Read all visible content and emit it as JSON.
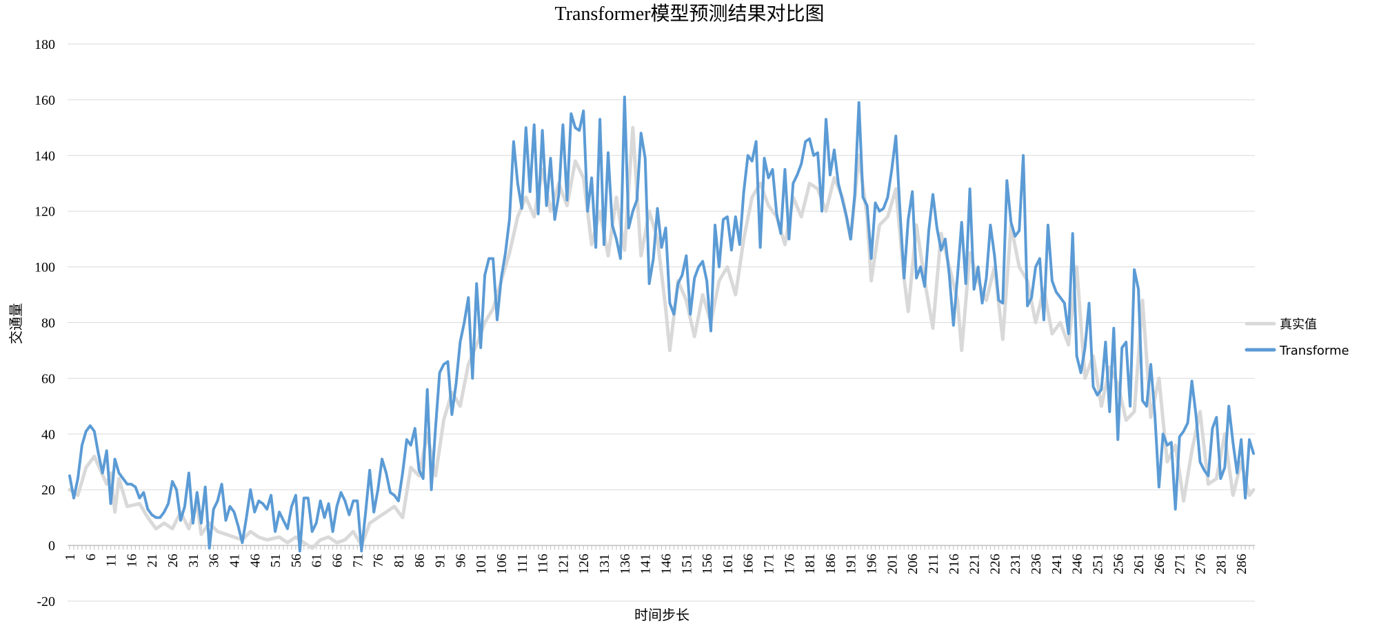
{
  "chart_data": {
    "type": "line",
    "title": "Transformer模型预测结果对比图",
    "xlabel": "时间步长",
    "ylabel": "交通量",
    "ylim": [
      -20,
      180
    ],
    "yticks": [
      -20,
      0,
      20,
      40,
      60,
      80,
      100,
      120,
      140,
      160,
      180
    ],
    "xticks": [
      1,
      6,
      11,
      16,
      21,
      26,
      31,
      36,
      41,
      46,
      51,
      56,
      61,
      66,
      71,
      76,
      81,
      86,
      91,
      96,
      101,
      106,
      111,
      116,
      121,
      126,
      131,
      136,
      141,
      146,
      151,
      156,
      161,
      166,
      171,
      176,
      181,
      186,
      191,
      196,
      201,
      206,
      211,
      216,
      221,
      226,
      231,
      236,
      241,
      246,
      251,
      256,
      261,
      266,
      271,
      276,
      281,
      286
    ],
    "x_start": 1,
    "x_end": 289,
    "grid": true,
    "legend_position": "right",
    "series": [
      {
        "name": "真实值",
        "color": "#d9d9d9",
        "anchors": [
          [
            1,
            20
          ],
          [
            3,
            18
          ],
          [
            5,
            28
          ],
          [
            7,
            32
          ],
          [
            10,
            22
          ],
          [
            11,
            26
          ],
          [
            12,
            12
          ],
          [
            13,
            24
          ],
          [
            15,
            14
          ],
          [
            18,
            15
          ],
          [
            20,
            10
          ],
          [
            22,
            6
          ],
          [
            24,
            8
          ],
          [
            26,
            6
          ],
          [
            28,
            12
          ],
          [
            30,
            6
          ],
          [
            32,
            15
          ],
          [
            33,
            4
          ],
          [
            35,
            8
          ],
          [
            37,
            5
          ],
          [
            39,
            4
          ],
          [
            41,
            3
          ],
          [
            43,
            2
          ],
          [
            45,
            5
          ],
          [
            47,
            3
          ],
          [
            49,
            2
          ],
          [
            52,
            3
          ],
          [
            54,
            1
          ],
          [
            56,
            3
          ],
          [
            58,
            1
          ],
          [
            60,
            -1
          ],
          [
            62,
            2
          ],
          [
            64,
            3
          ],
          [
            66,
            1
          ],
          [
            68,
            2
          ],
          [
            70,
            5
          ],
          [
            72,
            0
          ],
          [
            74,
            8
          ],
          [
            76,
            10
          ],
          [
            78,
            12
          ],
          [
            80,
            14
          ],
          [
            82,
            10
          ],
          [
            84,
            28
          ],
          [
            86,
            25
          ],
          [
            88,
            40
          ],
          [
            90,
            25
          ],
          [
            92,
            45
          ],
          [
            94,
            55
          ],
          [
            96,
            50
          ],
          [
            98,
            65
          ],
          [
            100,
            72
          ],
          [
            102,
            80
          ],
          [
            104,
            85
          ],
          [
            106,
            95
          ],
          [
            108,
            105
          ],
          [
            110,
            118
          ],
          [
            112,
            125
          ],
          [
            114,
            118
          ],
          [
            116,
            135
          ],
          [
            118,
            120
          ],
          [
            120,
            130
          ],
          [
            122,
            122
          ],
          [
            124,
            138
          ],
          [
            126,
            132
          ],
          [
            128,
            108
          ],
          [
            130,
            120
          ],
          [
            132,
            104
          ],
          [
            134,
            125
          ],
          [
            136,
            106
          ],
          [
            138,
            150
          ],
          [
            140,
            104
          ],
          [
            142,
            120
          ],
          [
            144,
            110
          ],
          [
            146,
            85
          ],
          [
            147,
            70
          ],
          [
            149,
            95
          ],
          [
            151,
            88
          ],
          [
            153,
            75
          ],
          [
            155,
            90
          ],
          [
            157,
            80
          ],
          [
            159,
            95
          ],
          [
            161,
            100
          ],
          [
            163,
            90
          ],
          [
            165,
            110
          ],
          [
            167,
            125
          ],
          [
            169,
            130
          ],
          [
            171,
            122
          ],
          [
            173,
            118
          ],
          [
            175,
            108
          ],
          [
            177,
            125
          ],
          [
            179,
            118
          ],
          [
            181,
            130
          ],
          [
            183,
            128
          ],
          [
            185,
            120
          ],
          [
            187,
            132
          ],
          [
            189,
            125
          ],
          [
            191,
            110
          ],
          [
            193,
            140
          ],
          [
            195,
            118
          ],
          [
            196,
            95
          ],
          [
            198,
            115
          ],
          [
            200,
            118
          ],
          [
            202,
            128
          ],
          [
            204,
            96
          ],
          [
            205,
            84
          ],
          [
            207,
            115
          ],
          [
            209,
            95
          ],
          [
            211,
            78
          ],
          [
            213,
            112
          ],
          [
            215,
            100
          ],
          [
            217,
            88
          ],
          [
            218,
            70
          ],
          [
            220,
            105
          ],
          [
            222,
            95
          ],
          [
            224,
            88
          ],
          [
            226,
            100
          ],
          [
            228,
            74
          ],
          [
            230,
            115
          ],
          [
            232,
            100
          ],
          [
            234,
            95
          ],
          [
            236,
            80
          ],
          [
            238,
            92
          ],
          [
            240,
            76
          ],
          [
            242,
            80
          ],
          [
            244,
            72
          ],
          [
            246,
            100
          ],
          [
            248,
            60
          ],
          [
            250,
            68
          ],
          [
            252,
            50
          ],
          [
            254,
            64
          ],
          [
            256,
            58
          ],
          [
            258,
            45
          ],
          [
            260,
            48
          ],
          [
            262,
            88
          ],
          [
            264,
            46
          ],
          [
            266,
            60
          ],
          [
            268,
            30
          ],
          [
            270,
            36
          ],
          [
            272,
            16
          ],
          [
            274,
            34
          ],
          [
            276,
            48
          ],
          [
            278,
            22
          ],
          [
            280,
            24
          ],
          [
            282,
            40
          ],
          [
            284,
            18
          ],
          [
            286,
            30
          ],
          [
            288,
            18
          ],
          [
            289,
            20
          ]
        ]
      },
      {
        "name": "Transforme",
        "color": "#5b9bd5",
        "values": [
          25,
          17,
          24,
          36,
          41,
          43,
          41,
          33,
          26,
          34,
          15,
          31,
          26,
          24,
          22,
          22,
          21,
          17,
          19,
          13,
          11,
          10,
          10,
          12,
          15,
          23,
          20,
          9,
          14,
          26,
          8,
          19,
          8,
          21,
          -1,
          13,
          16,
          22,
          9,
          14,
          12,
          7,
          1,
          10,
          20,
          12,
          16,
          15,
          13,
          18,
          5,
          12,
          9,
          6,
          14,
          18,
          -2,
          17,
          17,
          5,
          8,
          16,
          10,
          15,
          5,
          14,
          19,
          16,
          11,
          16,
          16,
          -2,
          12,
          27,
          12,
          20,
          31,
          26,
          19,
          18,
          16,
          26,
          38,
          36,
          42,
          27,
          24,
          56,
          20,
          42,
          62,
          65,
          66,
          47,
          58,
          73,
          80,
          89,
          60,
          94,
          71,
          97,
          103,
          103,
          81,
          96,
          105,
          117,
          145,
          130,
          121,
          150,
          127,
          151,
          119,
          149,
          122,
          139,
          117,
          126,
          151,
          124,
          155,
          150,
          149,
          156,
          120,
          132,
          107,
          153,
          108,
          141,
          115,
          110,
          103,
          161,
          114,
          120,
          124,
          148,
          139,
          94,
          103,
          121,
          107,
          114,
          87,
          83,
          94,
          97,
          104,
          83,
          96,
          100,
          102,
          95,
          77,
          115,
          100,
          117,
          118,
          106,
          118,
          108,
          127,
          140,
          138,
          145,
          107,
          139,
          132,
          135,
          119,
          112,
          135,
          110,
          130,
          133,
          137,
          145,
          146,
          140,
          141,
          120,
          153,
          133,
          142,
          130,
          124,
          118,
          110,
          126,
          159,
          125,
          122,
          103,
          123,
          120,
          121,
          125,
          135,
          147,
          120,
          96,
          117,
          127,
          96,
          100,
          93,
          113,
          126,
          114,
          106,
          110,
          97,
          79,
          97,
          116,
          94,
          128,
          92,
          100,
          87,
          96,
          115,
          104,
          88,
          87,
          131,
          116,
          111,
          113,
          140,
          86,
          89,
          100,
          103,
          81,
          115,
          95,
          91,
          89,
          87,
          76,
          112,
          68,
          62,
          71,
          87,
          57,
          54,
          56,
          73,
          48,
          78,
          38,
          71,
          73,
          50,
          99,
          92,
          52,
          50,
          65,
          47,
          21,
          40,
          36,
          37,
          13,
          39,
          41,
          44,
          59,
          47,
          30,
          27,
          25,
          42,
          46,
          24,
          28,
          50,
          37,
          26,
          38,
          17,
          38,
          33
        ]
      }
    ]
  }
}
